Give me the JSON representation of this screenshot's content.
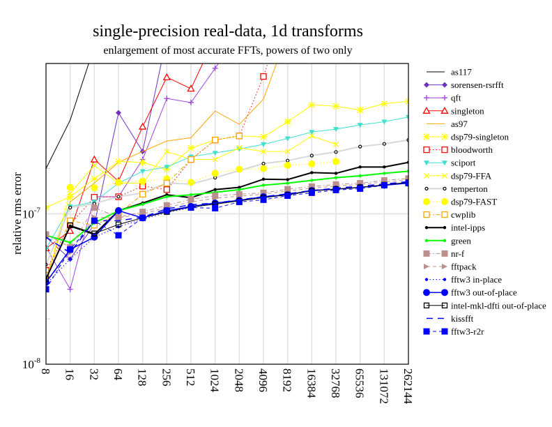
{
  "chart_data": {
    "type": "line",
    "title": "single-precision real-data, 1d transforms",
    "subtitle": "enlargement of most accurate FFTs, powers of two only",
    "xlabel": "",
    "ylabel": "relative rms error",
    "yscale": "log",
    "ylim": [
      1e-08,
      1e-06
    ],
    "ytick_labels": [
      {
        "value": 1e-08,
        "base": "10",
        "exp": "-8"
      },
      {
        "value": 1e-07,
        "base": "10",
        "exp": "-7"
      }
    ],
    "grid": true,
    "legend_position": "right",
    "categories": [
      "8",
      "16",
      "32",
      "64",
      "128",
      "256",
      "512",
      "1024",
      "2048",
      "4096",
      "8192",
      "16384",
      "32768",
      "65536",
      "131072",
      "262144"
    ],
    "series": [
      {
        "name": "as117",
        "color": "#000000",
        "marker": "none",
        "dash": "solid",
        "width": 1,
        "values": [
          2e-07,
          4.2e-07,
          1.3e-06,
          null,
          null,
          null,
          null,
          null,
          null,
          null,
          null,
          null,
          null,
          null,
          null,
          null
        ]
      },
      {
        "name": "sorensen-rsrfft",
        "color": "#7030c0",
        "marker": "diamond",
        "dash": "solid",
        "width": 1,
        "values": [
          7e-08,
          5e-08,
          8.5e-08,
          4.7e-07,
          2.6e-07,
          1.5e-06,
          null,
          null,
          null,
          null,
          null,
          null,
          null,
          null,
          null,
          null
        ]
      },
      {
        "name": "qft",
        "color": "#a040e0",
        "marker": "plus",
        "dash": "solid",
        "width": 1,
        "values": [
          6e-08,
          3.15e-08,
          1.3e-07,
          1.3e-07,
          2.3e-07,
          5.85e-07,
          5.5e-07,
          9.3e-07,
          1.6e-06,
          null,
          null,
          null,
          null,
          null,
          null,
          null
        ]
      },
      {
        "name": "singleton",
        "color": "#ff0000",
        "marker": "triangle-open",
        "dash": "solid",
        "width": 1,
        "values": [
          5.9e-08,
          7.7e-08,
          2.3e-07,
          1.65e-07,
          3.8e-07,
          8.1e-07,
          6.8e-07,
          1.5e-06,
          null,
          null,
          null,
          null,
          null,
          null,
          null,
          null
        ]
      },
      {
        "name": "as97",
        "color": "#ffa500",
        "marker": "none",
        "dash": "solid",
        "width": 1,
        "values": [
          3.7e-08,
          1.2e-07,
          1.6e-07,
          2.2e-07,
          2.6e-07,
          3.05e-07,
          3.21e-07,
          4.83e-07,
          3.94e-07,
          5.79e-07,
          1.6e-06,
          null,
          null,
          null,
          null,
          null
        ]
      },
      {
        "name": "dsp79-singleton",
        "color": "#ffff00",
        "marker": "asterisk",
        "dash": "solid",
        "width": 1,
        "values": [
          1.1e-07,
          1.3e-07,
          1.71e-07,
          2.23e-07,
          2.2e-07,
          1.98e-07,
          2.74e-07,
          3.1e-07,
          3.3e-07,
          3.25e-07,
          4.1e-07,
          5.3e-07,
          5.2e-07,
          4.9e-07,
          5.4e-07,
          5.6e-07
        ]
      },
      {
        "name": "bloodworth",
        "color": "#ff0000",
        "marker": "square-open",
        "dash": "dotted",
        "width": 1,
        "values": [
          4.2e-08,
          8.5e-08,
          1.29e-07,
          1.3e-07,
          1.53e-07,
          1.45e-07,
          2.3e-07,
          3.1e-07,
          3.3e-07,
          8.2e-07,
          2.5e-06,
          null,
          null,
          null,
          null,
          null
        ]
      },
      {
        "name": "sciport",
        "color": "#40e0d0",
        "marker": "triangle-down",
        "dash": "solid",
        "width": 1,
        "values": [
          5.85e-08,
          1.12e-07,
          1.2e-07,
          1.6e-07,
          1.92e-07,
          2.05e-07,
          2.4e-07,
          2.54e-07,
          2.7e-07,
          2.9e-07,
          3.17e-07,
          3.5e-07,
          3.66e-07,
          3.9e-07,
          4.1e-07,
          4.4e-07
        ]
      },
      {
        "name": "dsp79-FFA",
        "color": "#ffff00",
        "marker": "cross",
        "dash": "solid",
        "width": 1,
        "values": [
          3.5e-08,
          1.37e-07,
          2.1e-07,
          1.6e-07,
          1.6e-07,
          2.6e-07,
          2.3e-07,
          2.3e-07,
          2.75e-07,
          2.6e-07,
          2.6e-07,
          3.3e-07,
          2.9e-07,
          null,
          null,
          null
        ]
      },
      {
        "name": "temperton",
        "color": "#d8d8d8",
        "marker": "circle-small-open",
        "marker_color": "#000000",
        "dash": "solid",
        "width": 2,
        "values": [
          4.6e-08,
          1.1e-07,
          1.17e-07,
          1.3e-07,
          1.38e-07,
          1.6e-07,
          1.58e-07,
          1.74e-07,
          1.94e-07,
          2.16e-07,
          2.26e-07,
          2.44e-07,
          2.58e-07,
          2.8e-07,
          2.92e-07,
          3.1e-07
        ]
      },
      {
        "name": "dsp79-FAST",
        "color": "#ffff00",
        "marker": "circle-filled-large",
        "dash": "dotted",
        "width": 1,
        "values": [
          3.5e-08,
          1.5e-07,
          1.49e-07,
          1.62e-07,
          1.65e-07,
          1.71e-07,
          1.62e-07,
          1.86e-07,
          1.98e-07,
          2e-07,
          2.1e-07,
          2.15e-07,
          2.23e-07,
          null,
          null,
          null
        ]
      },
      {
        "name": "cwplib",
        "color": "#ffa500",
        "marker": "square-open",
        "dash": "dashdot",
        "width": 1,
        "values": [
          3.9e-08,
          9e-08,
          8.4e-08,
          1e-07,
          1.35e-07,
          1.6e-07,
          2.3e-07,
          3.1e-07,
          3.3e-07,
          null,
          null,
          null,
          null,
          null,
          null,
          null
        ]
      },
      {
        "name": "intel-ipps",
        "color": "#000000",
        "marker": "dot",
        "dash": "solid",
        "width": 2,
        "values": [
          3.7e-08,
          8.3e-08,
          7.3e-08,
          1.05e-07,
          1.18e-07,
          1.34e-07,
          1.28e-07,
          1.45e-07,
          1.5e-07,
          1.7e-07,
          1.69e-07,
          1.88e-07,
          1.86e-07,
          2.05e-07,
          2.05e-07,
          2.2e-07
        ]
      },
      {
        "name": "green",
        "color": "#00ff00",
        "marker": "dot",
        "dash": "solid",
        "width": 2,
        "values": [
          7.2e-08,
          6.45e-08,
          8.7e-08,
          1.05e-07,
          1.16e-07,
          1.3e-07,
          1.34e-07,
          1.39e-07,
          1.45e-07,
          1.55e-07,
          1.6e-07,
          1.67e-07,
          1.74e-07,
          1.79e-07,
          1.86e-07,
          1.92e-07
        ]
      },
      {
        "name": "nr-f",
        "color": "#bc8f8f",
        "marker": "square-filled",
        "dash": "dashdot",
        "width": 1,
        "values": [
          7.3e-08,
          6e-08,
          1.1e-07,
          9.5e-08,
          1.03e-07,
          1.14e-07,
          1.25e-07,
          1.32e-07,
          1.35e-07,
          1.38e-07,
          1.46e-07,
          1.52e-07,
          1.57e-07,
          1.6e-07,
          1.67e-07,
          1.72e-07
        ]
      },
      {
        "name": "fftpack",
        "color": "#bc8f8f",
        "marker": "triangle-right",
        "dash": "dashed",
        "width": 1,
        "values": [
          3.5e-08,
          5.5e-08,
          9.5e-08,
          9.4e-08,
          1e-07,
          1.1e-07,
          1.2e-07,
          1.27e-07,
          1.31e-07,
          1.35e-07,
          1.42e-07,
          1.48e-07,
          1.53e-07,
          1.57e-07,
          1.63e-07,
          1.68e-07
        ]
      },
      {
        "name": "fftw3 in-place",
        "color": "#0000ff",
        "marker": "dot",
        "dash": "dotted",
        "width": 1,
        "values": [
          3.4e-08,
          5e-08,
          7e-08,
          8.2e-08,
          9.2e-08,
          1.02e-07,
          1.1e-07,
          1.17e-07,
          1.22e-07,
          1.29e-07,
          1.33e-07,
          1.42e-07,
          1.46e-07,
          1.5e-07,
          1.55e-07,
          1.6e-07
        ]
      },
      {
        "name": "fftw3 out-of-place",
        "color": "#0000ff",
        "marker": "circle-filled-large",
        "dash": "solid",
        "width": 1.5,
        "values": [
          3.5e-08,
          5.8e-08,
          7e-08,
          1.05e-07,
          9.4e-08,
          1.05e-07,
          1.12e-07,
          1.18e-07,
          1.23e-07,
          1.3e-07,
          1.34e-07,
          1.43e-07,
          1.46e-07,
          1.5e-07,
          1.55e-07,
          1.6e-07
        ]
      },
      {
        "name": "intel-mkl-dfti out-of-place",
        "color": "#000000",
        "marker": "square-open-small",
        "dash": "solid",
        "width": 1,
        "values": [
          3.7e-08,
          8.4e-08,
          7.4e-08,
          8.5e-08,
          9.4e-08,
          1.03e-07,
          1.11e-07,
          1.16e-07,
          1.22e-07,
          1.28e-07,
          1.34e-07,
          1.42e-07,
          1.46e-07,
          1.5e-07,
          1.56e-07,
          1.62e-07
        ]
      },
      {
        "name": "kissfft",
        "color": "#0000ff",
        "marker": "none",
        "dash": "dashed-long",
        "width": 1.5,
        "values": [
          7e-08,
          5.5e-08,
          9e-08,
          9e-08,
          9.5e-08,
          1.08e-07,
          1.15e-07,
          1.18e-07,
          1.24e-07,
          1.3e-07,
          1.36e-07,
          1.43e-07,
          1.48e-07,
          1.53e-07,
          1.58e-07,
          1.64e-07
        ]
      },
      {
        "name": "fftw3-r2r",
        "color": "#0000ff",
        "marker": "square-filled",
        "dash": "dashed",
        "width": 1,
        "values": [
          3.15e-08,
          5.8e-08,
          9e-08,
          7.2e-08,
          9.4e-08,
          1.05e-07,
          1.1e-07,
          1.09e-07,
          1.2e-07,
          1.24e-07,
          1.32e-07,
          1.38e-07,
          1.44e-07,
          1.47e-07,
          1.55e-07,
          1.6e-07
        ]
      }
    ]
  }
}
